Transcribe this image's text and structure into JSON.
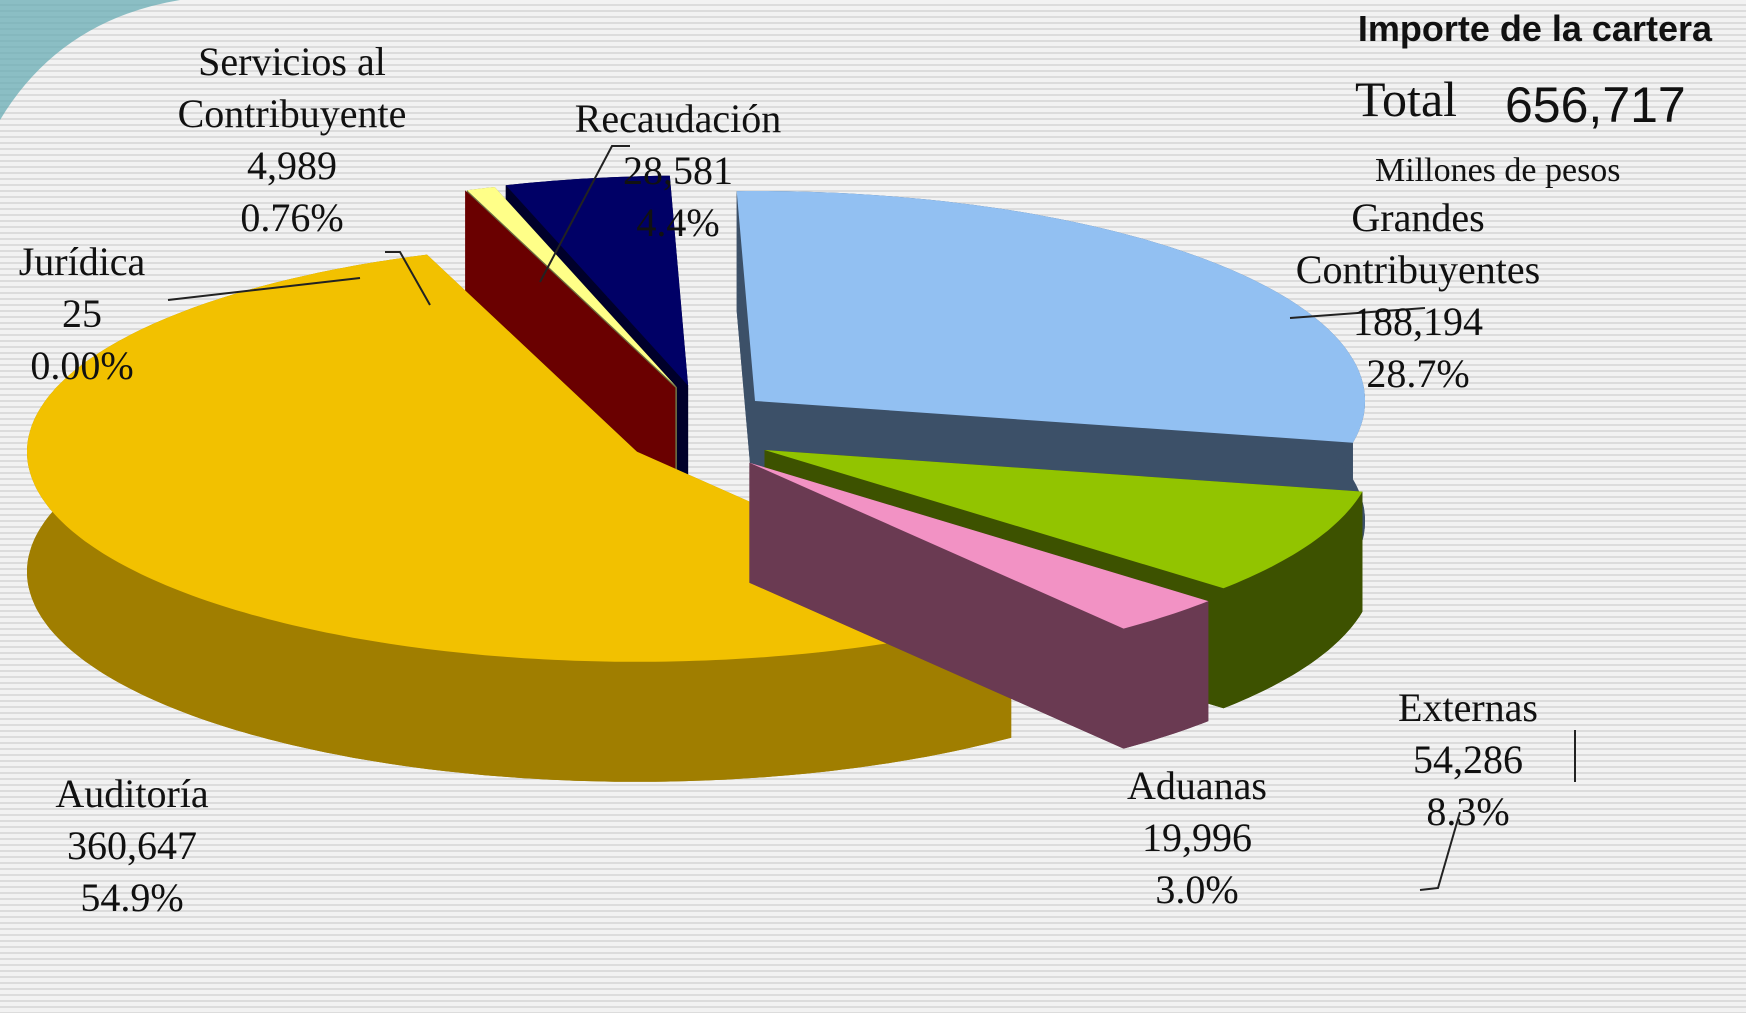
{
  "chart_data": {
    "type": "pie",
    "title": "Importe de la cartera",
    "total_label": "Total",
    "total": {
      "value": 656717,
      "label": "656,717"
    },
    "unit": "Millones de pesos",
    "categories": [
      "Grandes Contribuyentes",
      "Externas",
      "Aduanas",
      "Auditoría",
      "Jurídica",
      "Servicios al Contribuyente",
      "Recaudación"
    ],
    "values": [
      188194,
      54286,
      19996,
      360647,
      25,
      4989,
      28581
    ],
    "value_labels": [
      "188,194",
      "54,286",
      "19,996",
      "360,647",
      "25",
      "4,989",
      "28,581"
    ],
    "percents": [
      28.7,
      8.3,
      3.0,
      54.9,
      0.0,
      0.76,
      4.4
    ],
    "percent_labels": [
      "28.7%",
      "8.3%",
      "3.0%",
      "54.9%",
      "0.00%",
      "0.76%",
      "4.4%"
    ],
    "colors": [
      "#92c0f2",
      "#92c400",
      "#f292c4",
      "#f2c100",
      "#6a0000",
      "#ffff88",
      "#000066"
    ],
    "side_colors": [
      "#3c5068",
      "#3d5200",
      "#6a3a52",
      "#a07e00",
      "#6a0000",
      "#6a6a40",
      "#00002a"
    ]
  }
}
